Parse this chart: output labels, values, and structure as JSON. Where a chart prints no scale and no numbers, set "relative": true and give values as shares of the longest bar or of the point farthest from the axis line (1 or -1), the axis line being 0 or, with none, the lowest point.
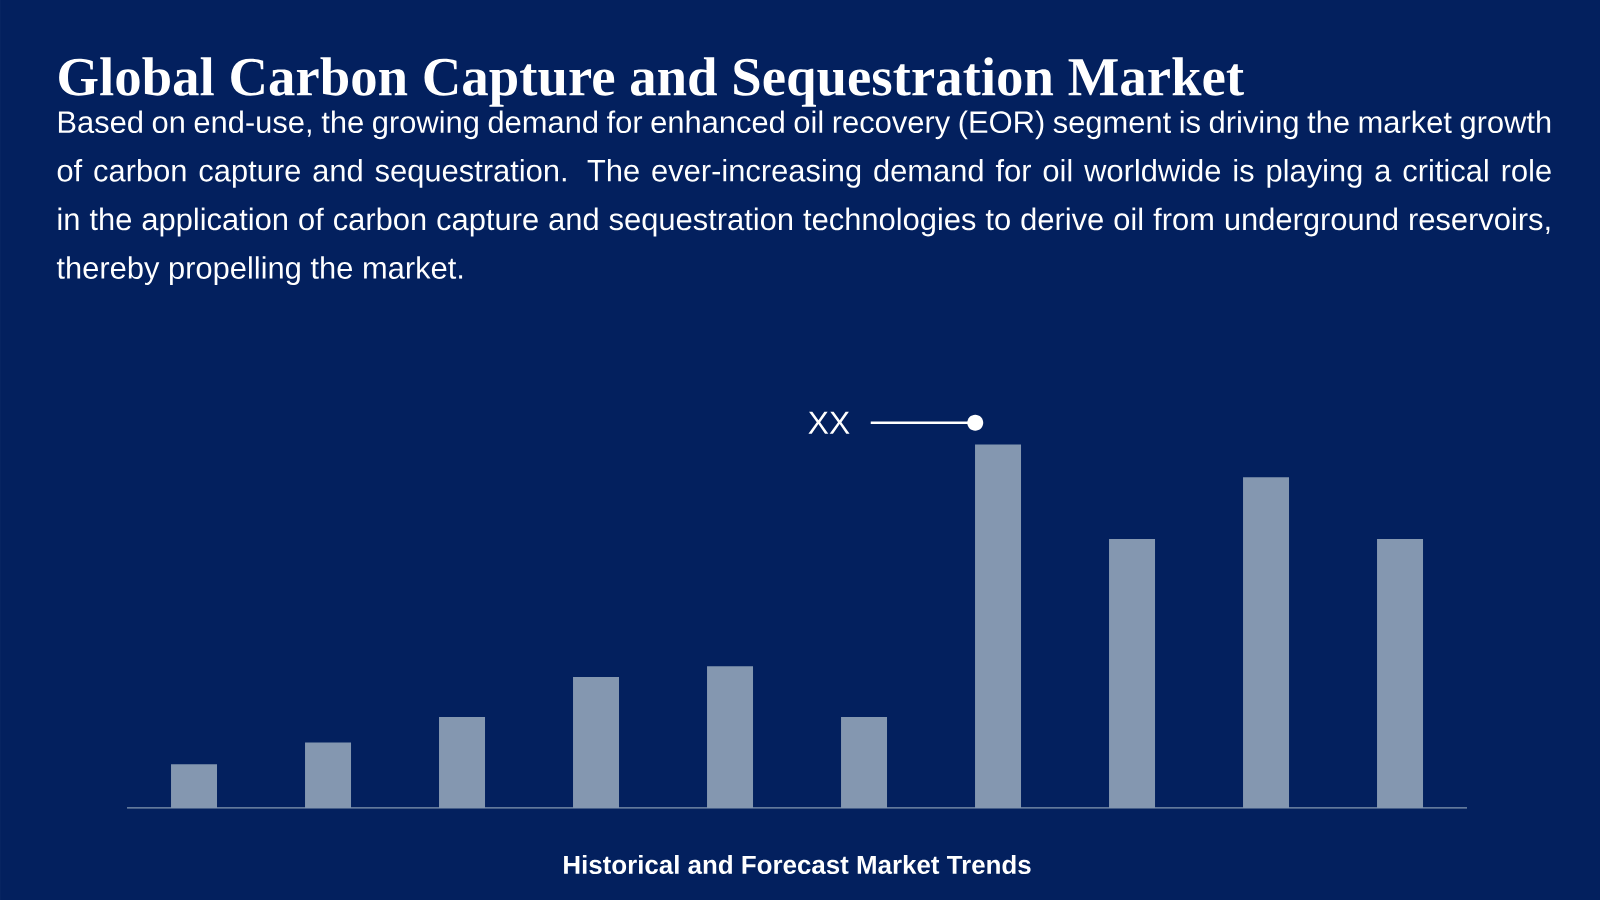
{
  "chart_data": {
    "type": "bar",
    "title": "Global Carbon Capture and Sequestration Market",
    "subtitle": "Based on end-use, the growing demand for enhanced oil recovery (EOR) segment is driving the market growth of carbon capture and sequestration. The ever-increasing demand for oil worldwide is playing a critical role in the application of carbon capture and sequestration technologies to derive oil from underground reservoirs, thereby propelling the market.",
    "xlabel": "Historical and Forecast Market Trends",
    "categories": [
      null,
      null,
      null,
      null,
      null,
      null,
      null,
      null,
      null,
      null
    ],
    "values": [
      0.12,
      0.18,
      0.25,
      0.36,
      0.39,
      0.25,
      1,
      0.74,
      0.91,
      0.74
    ],
    "color": "#8497b0",
    "relative": true,
    "annotations": [
      "XX"
    ]
  }
}
